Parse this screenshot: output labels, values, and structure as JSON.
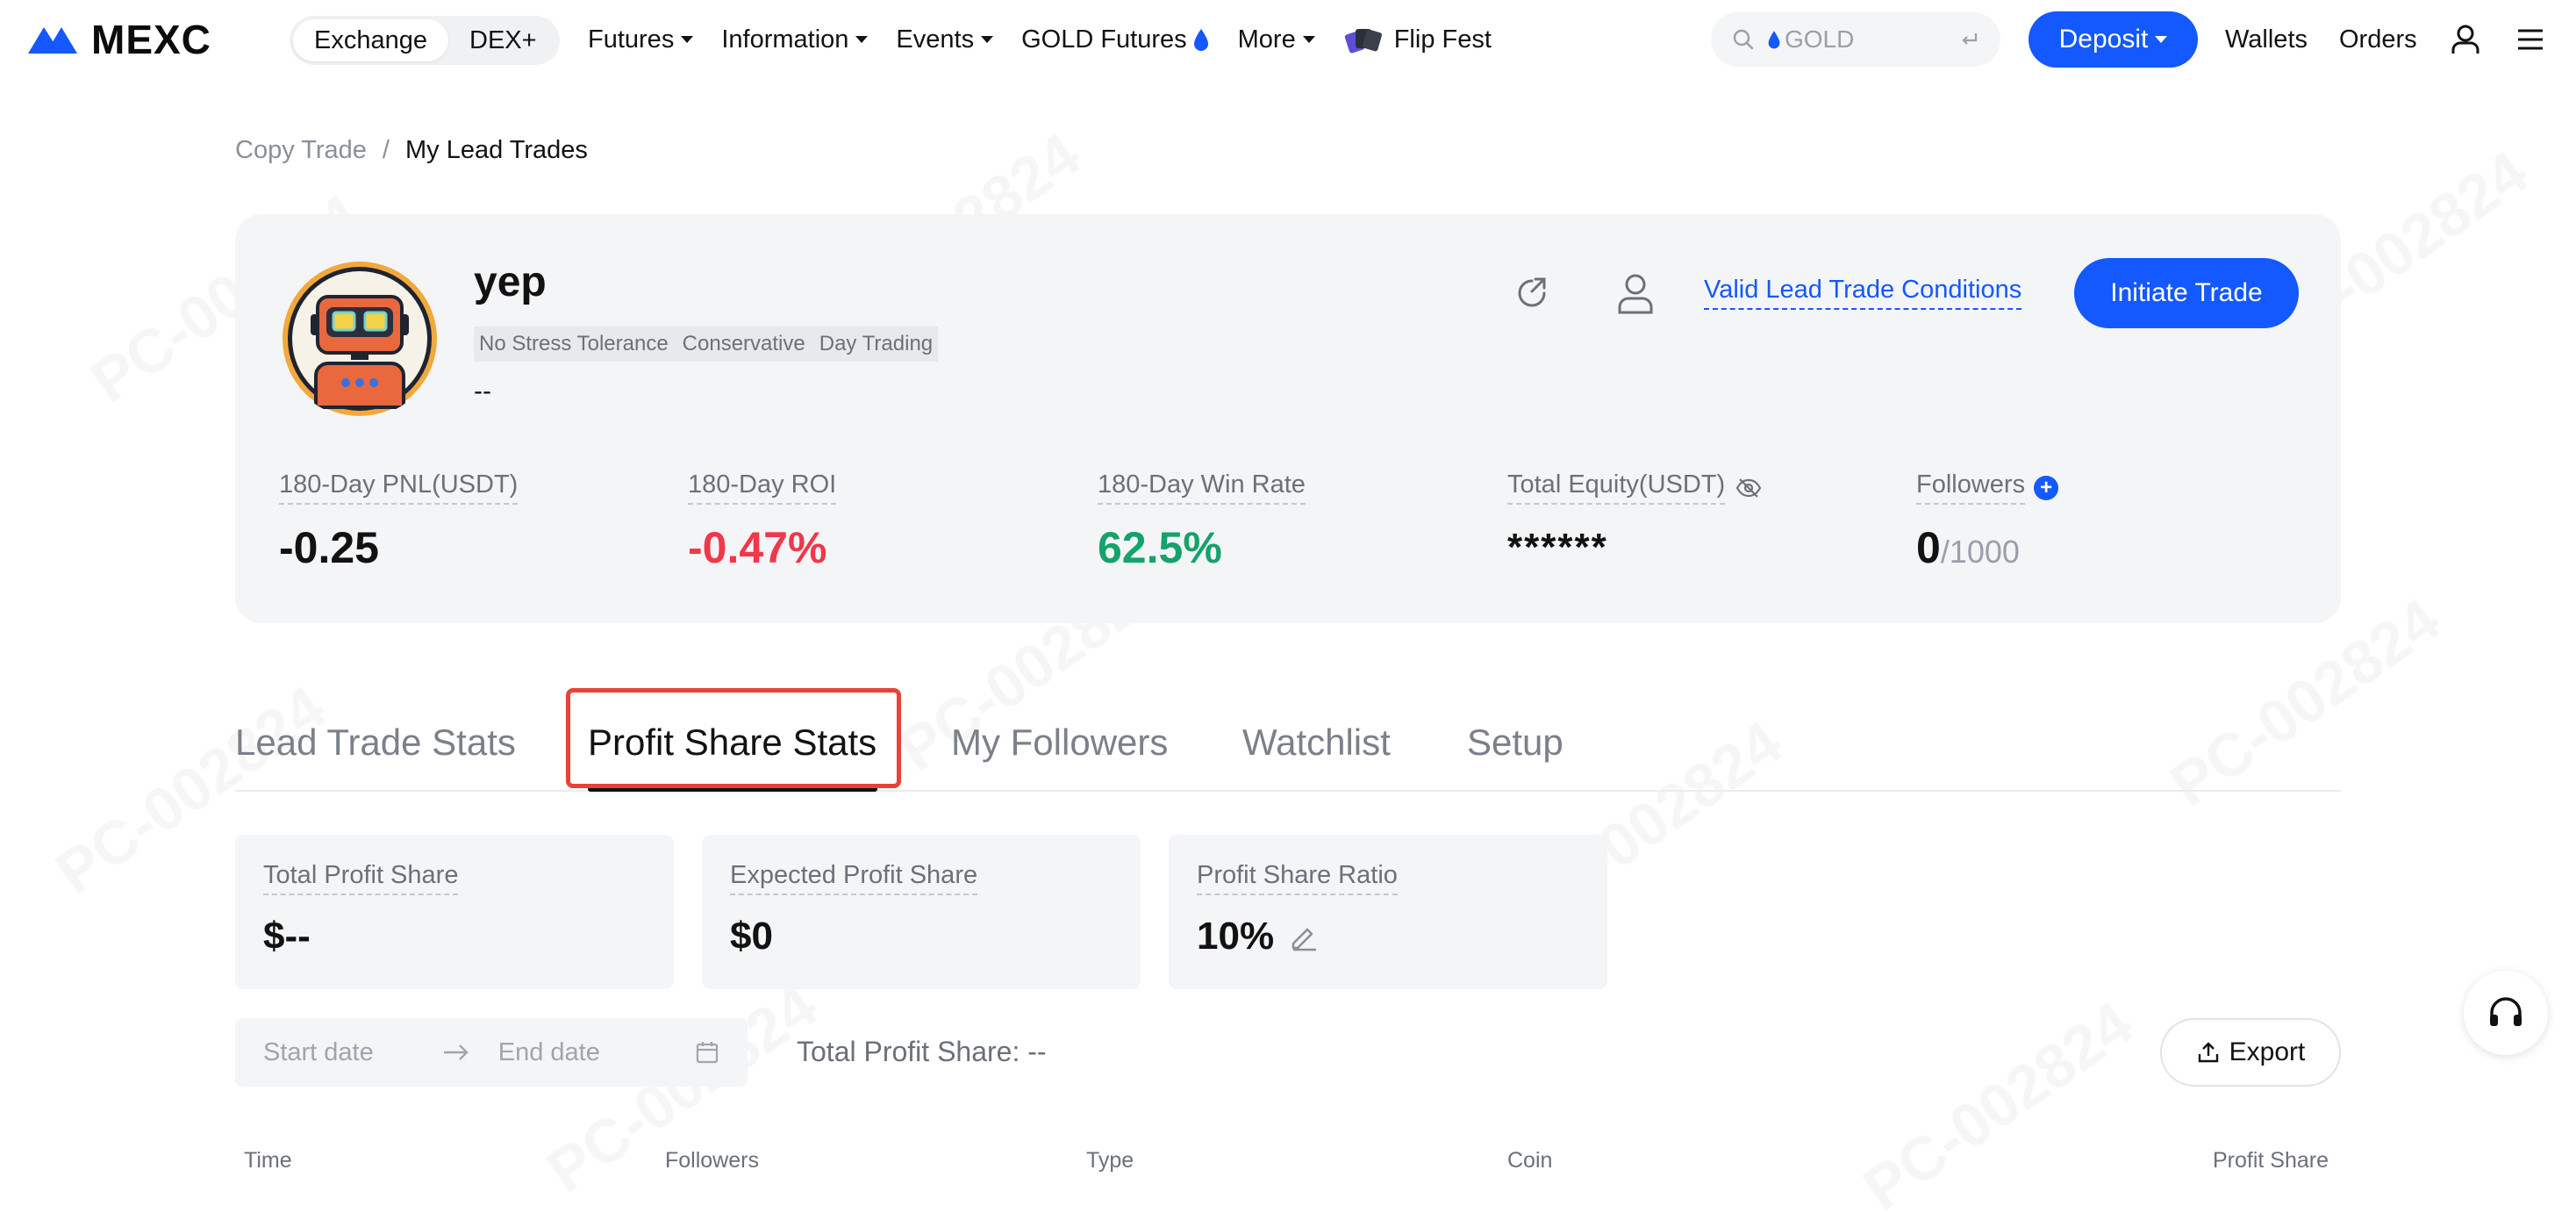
{
  "header": {
    "logo_text": "MEXC",
    "segments": [
      "Exchange",
      "DEX+"
    ],
    "nav": [
      {
        "label": "Futures",
        "caret": true
      },
      {
        "label": "Information",
        "caret": true
      },
      {
        "label": "Events",
        "caret": true
      },
      {
        "label": "GOLD Futures",
        "caret": false
      },
      {
        "label": "More",
        "caret": true
      },
      {
        "label": "Flip Fest",
        "caret": false
      }
    ],
    "search_placeholder": "GOLD",
    "deposit_label": "Deposit",
    "wallets_label": "Wallets",
    "orders_label": "Orders"
  },
  "watermark": "PC-002824",
  "breadcrumb": {
    "parent": "Copy Trade",
    "separator": "/",
    "current": "My Lead Trades"
  },
  "profile": {
    "name": "yep",
    "tags": [
      "No Stress Tolerance",
      "Conservative",
      "Day Trading"
    ],
    "bio": "--",
    "conditions_link": "Valid Lead Trade Conditions",
    "initiate_label": "Initiate Trade"
  },
  "stats": {
    "pnl": {
      "label": "180-Day PNL(USDT)",
      "value": "-0.25"
    },
    "roi": {
      "label": "180-Day ROI",
      "value": "-0.47%"
    },
    "win_rate": {
      "label": "180-Day Win Rate",
      "value": "62.5%"
    },
    "equity": {
      "label": "Total Equity(USDT)",
      "value": "******"
    },
    "followers": {
      "label": "Followers",
      "value": "0",
      "max": "/1000"
    }
  },
  "tabs": [
    "Lead Trade Stats",
    "Profit Share Stats",
    "My Followers",
    "Watchlist",
    "Setup"
  ],
  "active_tab": "Profit Share Stats",
  "summary": {
    "total": {
      "label": "Total Profit Share",
      "value": "$--"
    },
    "expected": {
      "label": "Expected Profit Share",
      "value": "$0"
    },
    "ratio": {
      "label": "Profit Share Ratio",
      "value": "10%"
    }
  },
  "filter": {
    "start_placeholder": "Start date",
    "end_placeholder": "End date",
    "total_text": "Total Profit Share: --",
    "export_label": "Export"
  },
  "table": {
    "columns": [
      "Time",
      "Followers",
      "Type",
      "Coin",
      "Profit Share"
    ]
  },
  "colors": {
    "accent": "#1458ff",
    "negative": "#f0384a",
    "positive": "#14a36a",
    "highlight": "#e8423a"
  }
}
